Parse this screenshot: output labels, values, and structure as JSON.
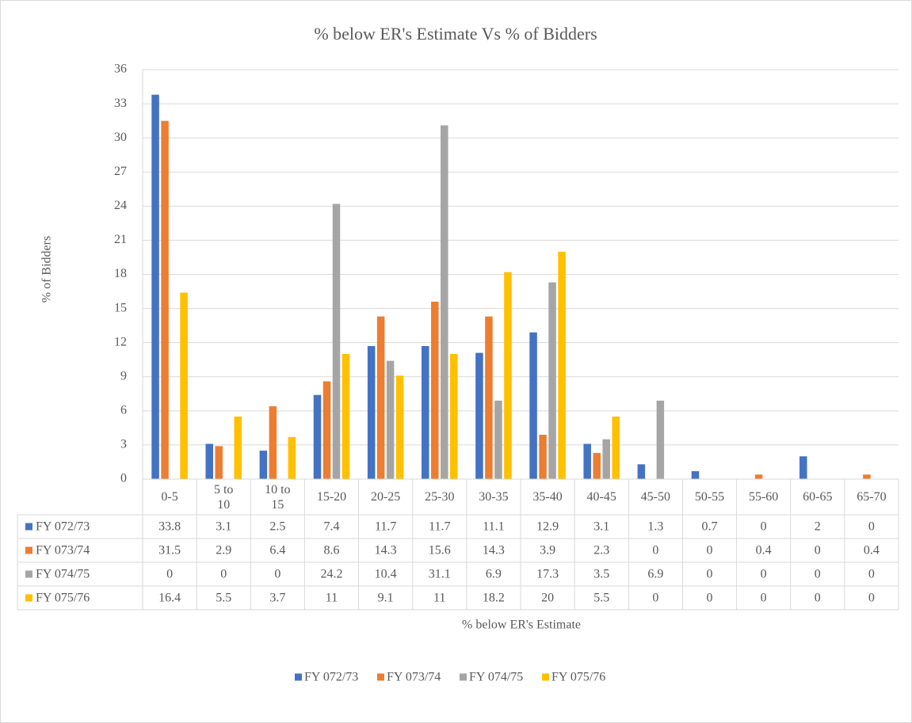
{
  "chart_data": {
    "type": "bar",
    "title": "% below ER's Estimate Vs % of Bidders",
    "x_label": "% below ER's Estimate",
    "y_label": "% of Bidders",
    "categories": [
      "0-5",
      "5 to 10",
      "10 to 15",
      "15-20",
      "20-25",
      "25-30",
      "30-35",
      "35-40",
      "40-45",
      "45-50",
      "50-55",
      "55-60",
      "60-65",
      "65-70"
    ],
    "series": [
      {
        "name": "FY 072/73",
        "color": "#4472c4",
        "values": [
          33.8,
          3.1,
          2.5,
          7.4,
          11.7,
          11.7,
          11.1,
          12.9,
          3.1,
          1.3,
          0.7,
          0,
          2,
          0
        ]
      },
      {
        "name": "FY 073/74",
        "color": "#ed7d31",
        "values": [
          31.5,
          2.9,
          6.4,
          8.6,
          14.3,
          15.6,
          14.3,
          3.9,
          2.3,
          0,
          0,
          0.4,
          0,
          0.4
        ]
      },
      {
        "name": "FY 074/75",
        "color": "#a5a5a5",
        "values": [
          0,
          0,
          0,
          24.2,
          10.4,
          31.1,
          6.9,
          17.3,
          3.5,
          6.9,
          0,
          0,
          0,
          0
        ]
      },
      {
        "name": "FY 075/76",
        "color": "#ffc000",
        "values": [
          16.4,
          5.5,
          3.7,
          11,
          9.1,
          11,
          18.2,
          20,
          5.5,
          0,
          0,
          0,
          0,
          0
        ]
      }
    ],
    "ylim": [
      0,
      36
    ],
    "yticks": [
      0,
      3,
      6,
      9,
      12,
      15,
      18,
      21,
      24,
      27,
      30,
      33,
      36
    ],
    "grid": true,
    "legend": "bottom",
    "data_table": true
  }
}
